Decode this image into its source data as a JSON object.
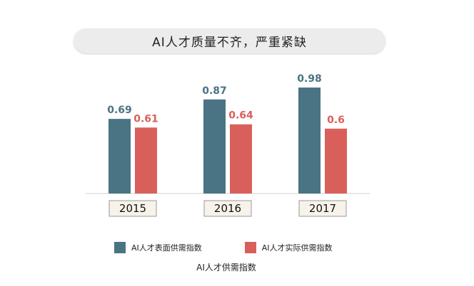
{
  "chart_data": {
    "type": "bar",
    "title": "AI人才质量不齐，严重紧缺",
    "categories": [
      "2015",
      "2016",
      "2017"
    ],
    "series": [
      {
        "name": "AI人才表面供需指数",
        "values": [
          0.69,
          0.87,
          0.98
        ],
        "value_labels": [
          "0.69",
          "0.87",
          "0.98"
        ],
        "color": "#4a7384"
      },
      {
        "name": "AI人才实际供需指数",
        "values": [
          0.61,
          0.64,
          0.6
        ],
        "value_labels": [
          "0.61",
          "0.64",
          "0.6"
        ],
        "color": "#d9605a"
      }
    ],
    "xlabel": "AI人才供需指数",
    "ylabel": "",
    "ylim": [
      0,
      1.0
    ],
    "grid": false,
    "legend_position": "bottom"
  }
}
